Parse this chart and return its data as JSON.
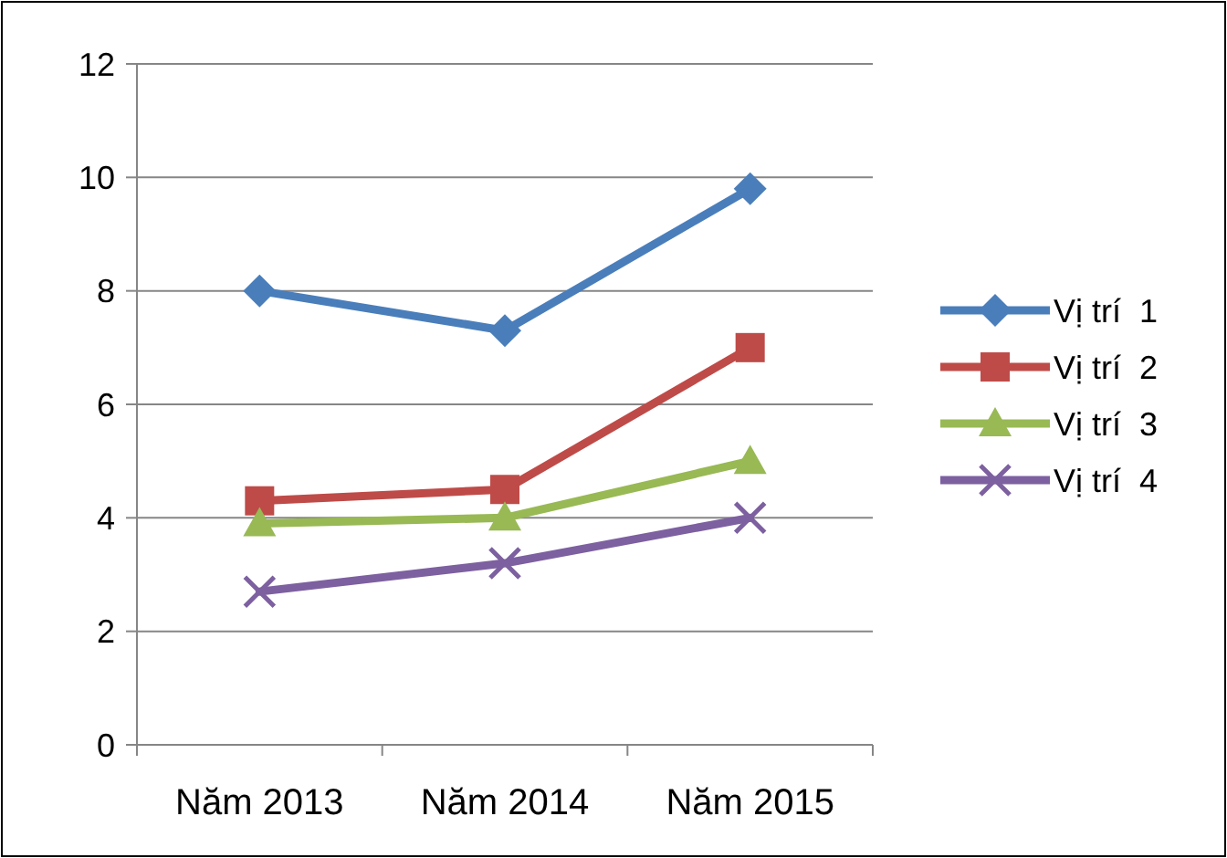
{
  "chart_data": {
    "type": "line",
    "categories": [
      "Năm 2013",
      "Năm 2014",
      "Năm 2015"
    ],
    "ylim": [
      0,
      12
    ],
    "yticks": [
      0,
      2,
      4,
      6,
      8,
      10,
      12
    ],
    "grid": "y",
    "legend": "right",
    "line_style": "solid",
    "series": [
      {
        "name": "Vị trí  1",
        "color": "#4a7ebb",
        "marker": "diamond",
        "values": [
          8,
          7.3,
          9.8
        ]
      },
      {
        "name": "Vị trí  2",
        "color": "#be4b48",
        "marker": "square",
        "values": [
          4.3,
          4.5,
          7
        ]
      },
      {
        "name": "Vị trí  3",
        "color": "#98b954",
        "marker": "triangle",
        "values": [
          3.9,
          4,
          5
        ]
      },
      {
        "name": "Vị trí  4",
        "color": "#7d60a0",
        "marker": "cross",
        "values": [
          2.7,
          3.2,
          4
        ]
      }
    ]
  }
}
